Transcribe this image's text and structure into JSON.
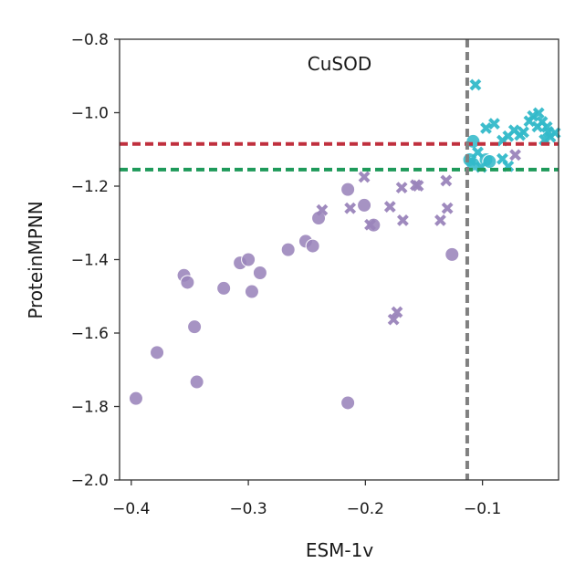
{
  "chart_data": {
    "type": "scatter",
    "title": "CuSOD",
    "xlabel": "ESM-1v",
    "ylabel": "ProteinMPNN",
    "xlim": [
      -0.41,
      -0.035
    ],
    "ylim": [
      -2.0,
      -0.8
    ],
    "x_ticks": [
      -0.4,
      -0.3,
      -0.2,
      -0.1
    ],
    "x_tick_labels": [
      "−0.4",
      "−0.3",
      "−0.2",
      "−0.1"
    ],
    "y_ticks": [
      -0.8,
      -1.0,
      -1.2,
      -1.4,
      -1.6,
      -1.8,
      -2.0
    ],
    "y_tick_labels": [
      "−0.8",
      "−1.0",
      "−1.2",
      "−1.4",
      "−1.6",
      "−1.8",
      "−2.0"
    ],
    "grid": false,
    "reference_lines": [
      {
        "orientation": "horizontal",
        "value": -1.085,
        "color": "#c0303e",
        "style": "dashed"
      },
      {
        "orientation": "horizontal",
        "value": -1.155,
        "color": "#1e9a5a",
        "style": "dashed"
      },
      {
        "orientation": "vertical",
        "value": -0.113,
        "color": "#808080",
        "style": "dashed"
      }
    ],
    "series": [
      {
        "name": "purple-circles",
        "marker": "circle",
        "color": "#9a84bb",
        "points": [
          [
            -0.396,
            -1.778
          ],
          [
            -0.378,
            -1.653
          ],
          [
            -0.355,
            -1.443
          ],
          [
            -0.352,
            -1.462
          ],
          [
            -0.346,
            -1.583
          ],
          [
            -0.344,
            -1.733
          ],
          [
            -0.321,
            -1.478
          ],
          [
            -0.307,
            -1.409
          ],
          [
            -0.3,
            -1.4
          ],
          [
            -0.297,
            -1.487
          ],
          [
            -0.29,
            -1.436
          ],
          [
            -0.266,
            -1.373
          ],
          [
            -0.251,
            -1.35
          ],
          [
            -0.245,
            -1.363
          ],
          [
            -0.24,
            -1.287
          ],
          [
            -0.215,
            -1.209
          ],
          [
            -0.201,
            -1.252
          ],
          [
            -0.193,
            -1.306
          ],
          [
            -0.215,
            -1.79
          ],
          [
            -0.126,
            -1.386
          ]
        ]
      },
      {
        "name": "purple-crosses",
        "marker": "x",
        "color": "#9a84bb",
        "points": [
          [
            -0.237,
            -1.265
          ],
          [
            -0.213,
            -1.26
          ],
          [
            -0.201,
            -1.175
          ],
          [
            -0.196,
            -1.305
          ],
          [
            -0.179,
            -1.256
          ],
          [
            -0.176,
            -1.563
          ],
          [
            -0.173,
            -1.543
          ],
          [
            -0.169,
            -1.204
          ],
          [
            -0.168,
            -1.293
          ],
          [
            -0.157,
            -1.197
          ],
          [
            -0.155,
            -1.199
          ],
          [
            -0.136,
            -1.293
          ],
          [
            -0.131,
            -1.185
          ],
          [
            -0.13,
            -1.26
          ],
          [
            -0.072,
            -1.115
          ]
        ]
      },
      {
        "name": "teal-circles",
        "marker": "circle",
        "color": "#33b9c9",
        "points": [
          [
            -0.108,
            -1.078
          ],
          [
            -0.111,
            -1.128
          ],
          [
            -0.108,
            -1.14
          ],
          [
            -0.097,
            -1.128
          ],
          [
            -0.094,
            -1.133
          ]
        ]
      },
      {
        "name": "teal-crosses",
        "marker": "x",
        "color": "#33b9c9",
        "points": [
          [
            -0.106,
            -0.924
          ],
          [
            -0.097,
            -1.042
          ],
          [
            -0.09,
            -1.03
          ],
          [
            -0.083,
            -1.076
          ],
          [
            -0.078,
            -1.064
          ],
          [
            -0.073,
            -1.048
          ],
          [
            -0.065,
            -1.053
          ],
          [
            -0.06,
            -1.023
          ],
          [
            -0.057,
            -1.009
          ],
          [
            -0.053,
            -1.038
          ],
          [
            -0.052,
            -1.001
          ],
          [
            -0.049,
            -1.025
          ],
          [
            -0.045,
            -1.039
          ],
          [
            -0.044,
            -1.052
          ],
          [
            -0.042,
            -1.066
          ],
          [
            -0.047,
            -1.074
          ],
          [
            -0.038,
            -1.055
          ],
          [
            -0.101,
            -1.148
          ],
          [
            -0.11,
            -1.13
          ],
          [
            -0.104,
            -1.108
          ],
          [
            -0.083,
            -1.126
          ],
          [
            -0.078,
            -1.146
          ],
          [
            -0.068,
            -1.061
          ]
        ]
      }
    ]
  }
}
